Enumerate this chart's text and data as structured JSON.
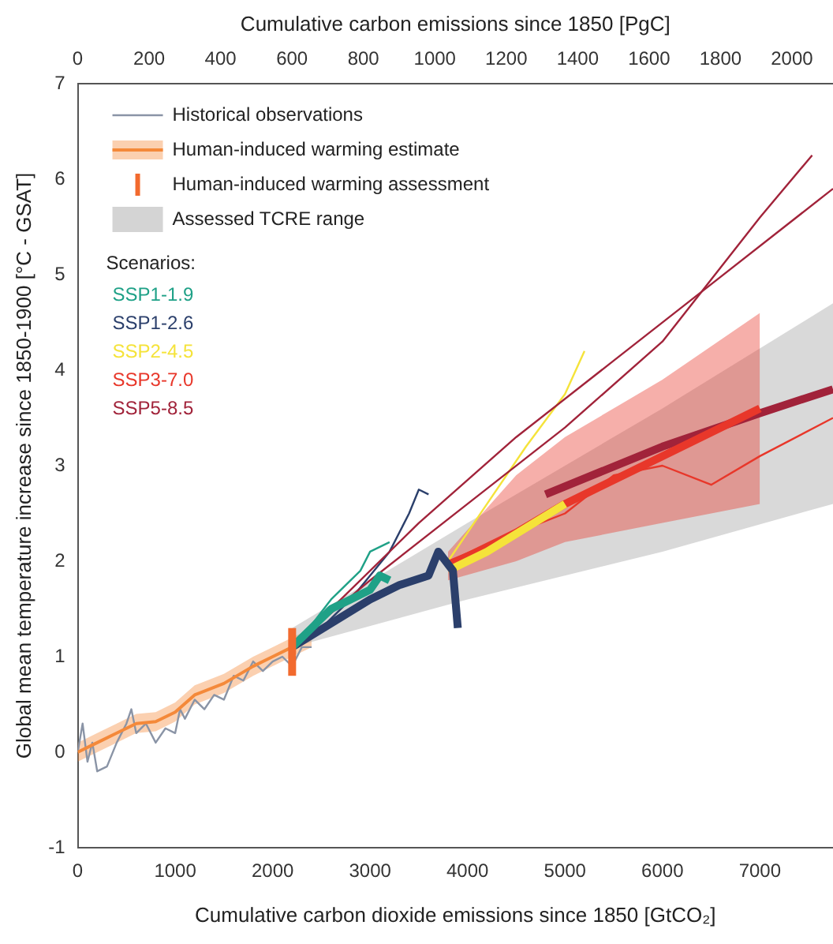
{
  "chart_data": {
    "type": "line",
    "xlabel": "Cumulative carbon dioxide emissions since 1850 [GtCO₂]",
    "ylabel": "Global mean temperature increase since 1850-1900 [°C - GSAT]",
    "x2label": "Cumulative carbon emissions since 1850 [PgC]",
    "legend_title": "Scenarios:",
    "legend": "top left",
    "grid": false,
    "xlim": [
      0,
      7750
    ],
    "xticks": [
      0,
      1000,
      2000,
      3000,
      4000,
      5000,
      6000,
      7000
    ],
    "x2lim": [
      0,
      2115
    ],
    "x2ticks": [
      0,
      200,
      400,
      600,
      800,
      1000,
      1200,
      1400,
      1600,
      1800,
      2000
    ],
    "ylim": [
      -1,
      7
    ],
    "yticks": [
      -1,
      0,
      1,
      2,
      3,
      4,
      5,
      6,
      7
    ],
    "series": [
      {
        "name": "Historical observations",
        "color": "#8a94a6",
        "x": [
          0,
          50,
          100,
          150,
          200,
          300,
          400,
          500,
          550,
          600,
          700,
          800,
          900,
          1000,
          1050,
          1100,
          1200,
          1300,
          1400,
          1500,
          1600,
          1700,
          1800,
          1900,
          2000,
          2100,
          2200,
          2300,
          2400
        ],
        "values": [
          0.0,
          0.3,
          -0.1,
          0.1,
          -0.2,
          -0.15,
          0.1,
          0.3,
          0.45,
          0.2,
          0.3,
          0.1,
          0.25,
          0.2,
          0.45,
          0.35,
          0.55,
          0.45,
          0.6,
          0.55,
          0.8,
          0.75,
          0.95,
          0.85,
          0.95,
          1.0,
          0.9,
          1.1,
          1.1
        ]
      },
      {
        "name": "Human-induced warming estimate",
        "color": "#f4893a",
        "x": [
          0,
          200,
          400,
          600,
          800,
          1000,
          1200,
          1500,
          1800,
          2000,
          2200,
          2400
        ],
        "values": [
          0.0,
          0.1,
          0.2,
          0.3,
          0.32,
          0.42,
          0.6,
          0.72,
          0.9,
          1.0,
          1.1,
          1.2
        ],
        "lower": [
          -0.1,
          0.0,
          0.1,
          0.2,
          0.22,
          0.32,
          0.5,
          0.62,
          0.8,
          0.9,
          1.0,
          1.1
        ],
        "upper": [
          0.1,
          0.2,
          0.3,
          0.4,
          0.42,
          0.52,
          0.7,
          0.82,
          1.0,
          1.1,
          1.2,
          1.3
        ]
      },
      {
        "name": "Human-induced warming assessment",
        "color": "#f26a2e",
        "x": [
          2200,
          2200
        ],
        "values": [
          0.8,
          1.3
        ]
      },
      {
        "name": "Assessed TCRE range",
        "color": "#a0a0a0",
        "x": [
          2200,
          4000,
          6000,
          7750
        ],
        "values": [
          null,
          null,
          null,
          null
        ],
        "lower": [
          1.1,
          1.6,
          2.1,
          2.6
        ],
        "upper": [
          1.3,
          2.4,
          3.6,
          4.7
        ]
      },
      {
        "name": "SSP1-1.9",
        "color": "#1fa187",
        "x": [
          2200,
          2400,
          2600,
          2800,
          3000,
          3100,
          3200
        ],
        "values": [
          1.1,
          1.3,
          1.5,
          1.6,
          1.7,
          1.85,
          1.8
        ]
      },
      {
        "color": "#1fa187",
        "x": [
          2300,
          2600,
          2900,
          3000,
          3100,
          3200
        ],
        "values": [
          1.2,
          1.6,
          1.9,
          2.1,
          2.15,
          2.2
        ]
      },
      {
        "name": "SSP1-2.6",
        "color": "#2b3f6b",
        "x": [
          2200,
          2600,
          3000,
          3300,
          3600,
          3700,
          3850,
          3900
        ],
        "values": [
          1.1,
          1.35,
          1.6,
          1.75,
          1.85,
          2.1,
          1.9,
          1.3
        ]
      },
      {
        "color": "#2b3f6b",
        "x": [
          2400,
          2800,
          3200,
          3400,
          3500,
          3600
        ],
        "values": [
          1.2,
          1.6,
          2.1,
          2.5,
          2.75,
          2.7
        ]
      },
      {
        "name": "SSP2-4.5",
        "color": "#f5e33a",
        "x": [
          3800,
          4200,
          4600,
          5000
        ],
        "values": [
          1.9,
          2.1,
          2.35,
          2.6
        ]
      },
      {
        "color": "#f5e33a",
        "x": [
          3800,
          4200,
          4600,
          5000,
          5200
        ],
        "values": [
          2.0,
          2.6,
          3.2,
          3.75,
          4.2
        ]
      },
      {
        "name": "SSP3-7.0",
        "color": "#e8372a",
        "x": [
          3800,
          4500,
          5000,
          6000,
          7000
        ],
        "values": [
          1.95,
          2.3,
          2.6,
          3.1,
          3.6
        ],
        "lower": [
          1.8,
          2.0,
          2.2,
          2.4,
          2.6
        ],
        "upper": [
          2.1,
          2.9,
          3.3,
          3.9,
          4.6
        ]
      },
      {
        "color": "#e8372a",
        "x": [
          3800,
          4500,
          5000,
          5500,
          6000,
          6500,
          7000,
          7750
        ],
        "values": [
          2.0,
          2.3,
          2.5,
          2.9,
          3.0,
          2.8,
          3.1,
          3.5
        ]
      },
      {
        "name": "SSP5-8.5",
        "color": "#a1233a",
        "x": [
          4800,
          6000,
          7000,
          7750
        ],
        "values": [
          2.7,
          3.2,
          3.55,
          3.8
        ]
      },
      {
        "color": "#a1233a",
        "x": [
          2300,
          3000,
          4000,
          5000,
          6000,
          7000,
          7536
        ],
        "values": [
          1.2,
          1.8,
          2.6,
          3.4,
          4.3,
          5.6,
          6.25
        ]
      },
      {
        "color": "#a1233a",
        "x": [
          2300,
          3500,
          4500,
          5500,
          6500,
          7750
        ],
        "values": [
          1.2,
          2.4,
          3.3,
          4.1,
          4.9,
          5.9
        ]
      }
    ]
  }
}
